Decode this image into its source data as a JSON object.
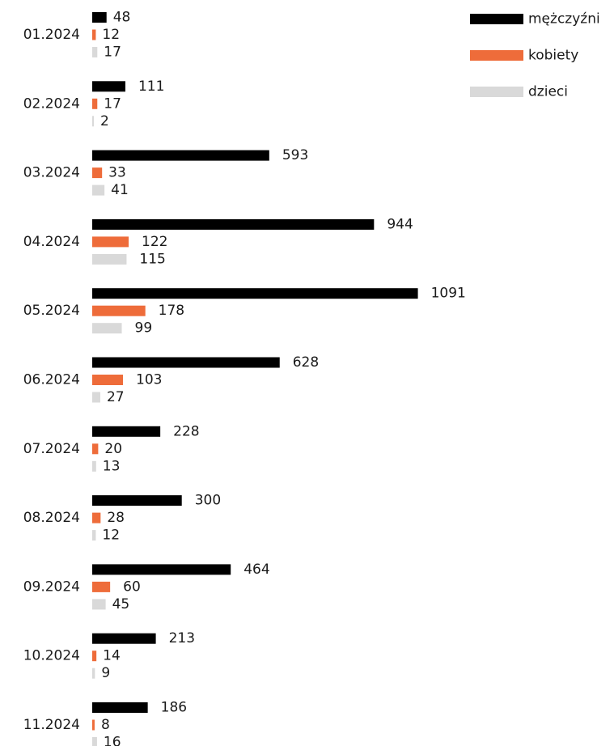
{
  "chart_data": {
    "type": "bar",
    "orientation": "horizontal",
    "categories": [
      "01.2024",
      "02.2024",
      "03.2024",
      "04.2024",
      "05.2024",
      "06.2024",
      "07.2024",
      "08.2024",
      "09.2024",
      "10.2024",
      "11.2024"
    ],
    "series": [
      {
        "name": "mężczyźni",
        "color": "#000000",
        "values": [
          48,
          111,
          593,
          944,
          1091,
          628,
          228,
          300,
          464,
          213,
          186
        ]
      },
      {
        "name": "kobiety",
        "color": "#ee6c3a",
        "values": [
          12,
          17,
          33,
          122,
          178,
          103,
          20,
          28,
          60,
          14,
          8
        ]
      },
      {
        "name": "dzieci",
        "color": "#d9d9d9",
        "values": [
          17,
          2,
          41,
          115,
          99,
          27,
          13,
          12,
          45,
          9,
          16
        ]
      }
    ],
    "legend_position": "top-right",
    "grid": false
  }
}
